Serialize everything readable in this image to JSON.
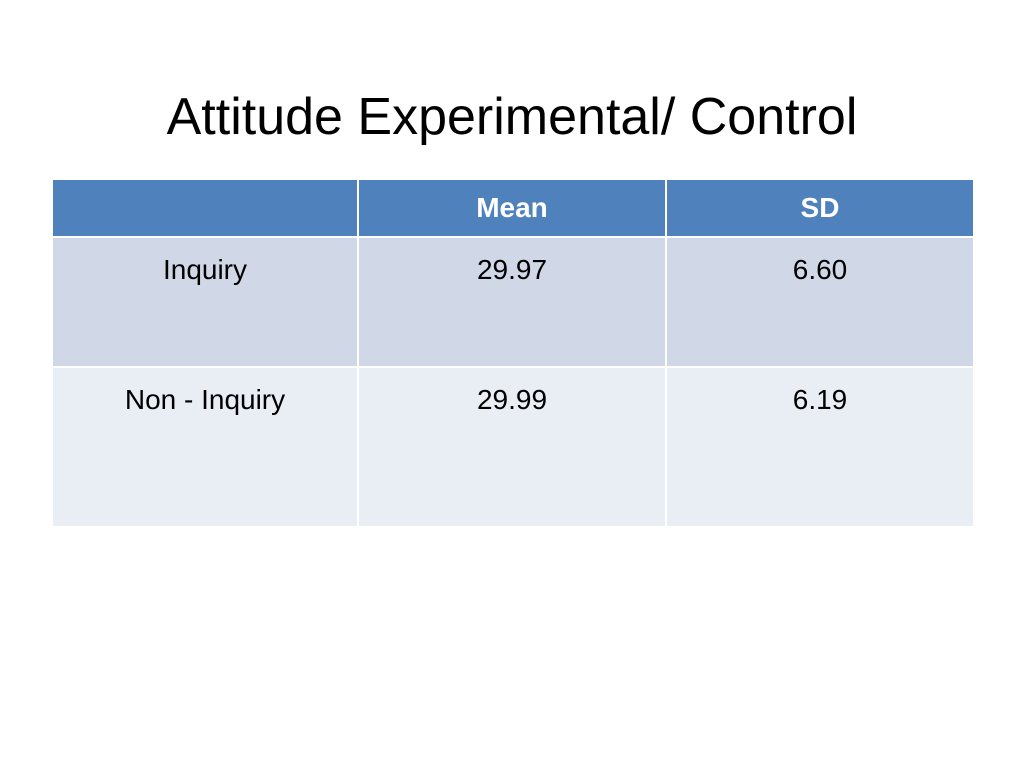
{
  "slide": {
    "title": "Attitude Experimental/ Control"
  },
  "table": {
    "headers": [
      "",
      "Mean",
      "SD"
    ],
    "rows": [
      [
        "Inquiry",
        "29.97",
        "6.60"
      ],
      [
        "Non - Inquiry",
        "29.99",
        "6.19"
      ]
    ]
  },
  "colors": {
    "header_bg": "#4F81BD",
    "row_odd_bg": "#D0D8E8",
    "row_even_bg": "#E9EDF4",
    "header_text": "#FFFFFF",
    "body_text": "#000000",
    "background": "#FFFFFF"
  }
}
